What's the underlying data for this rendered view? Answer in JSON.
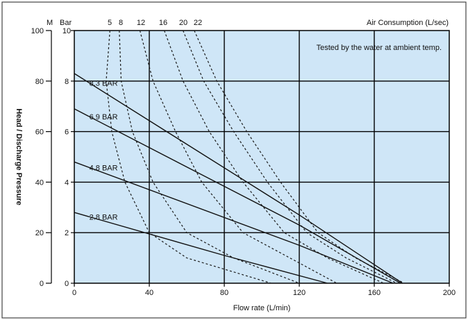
{
  "chart_data": {
    "type": "line",
    "xlabel": "Flow rate (L/min)",
    "ylabel": "Head / Discharge Pressure",
    "y_unit_left": "M",
    "y_unit_right": "Bar",
    "top_label": "Air Consumption (L/sec)",
    "note": "Tested by the water at ambient temp.",
    "xlim": [
      0,
      200
    ],
    "ylim_m": [
      0,
      100
    ],
    "ylim_bar": [
      0,
      10
    ],
    "x_ticks": [
      "0",
      "40",
      "80",
      "120",
      "160",
      "200"
    ],
    "y_ticks_m": [
      "0",
      "20",
      "40",
      "60",
      "80",
      "100"
    ],
    "y_ticks_bar": [
      "0",
      "2",
      "4",
      "6",
      "8",
      "10"
    ],
    "grid": true,
    "background_color": "#cfe6f7",
    "pressure_series": [
      {
        "name": "8.3 BAR",
        "points": [
          [
            0,
            8.3
          ],
          [
            120,
            2.7
          ],
          [
            175,
            0
          ]
        ]
      },
      {
        "name": "6.9 BAR",
        "points": [
          [
            0,
            6.9
          ],
          [
            120,
            2.3
          ],
          [
            174,
            0
          ]
        ]
      },
      {
        "name": "4.8 BAR",
        "points": [
          [
            0,
            4.8
          ],
          [
            120,
            1.5
          ],
          [
            170,
            0
          ]
        ]
      },
      {
        "name": "2.8 BAR",
        "points": [
          [
            0,
            2.8
          ],
          [
            80,
            1.1
          ],
          [
            135,
            0
          ]
        ]
      }
    ],
    "air_consumption_series": [
      {
        "name": "5",
        "points": [
          [
            19,
            10
          ],
          [
            17,
            8
          ],
          [
            20,
            6
          ],
          [
            27,
            4
          ],
          [
            40,
            2
          ],
          [
            60,
            1
          ],
          [
            105,
            0
          ]
        ]
      },
      {
        "name": "8",
        "points": [
          [
            24,
            10
          ],
          [
            25,
            8
          ],
          [
            31,
            6
          ],
          [
            42,
            4
          ],
          [
            60,
            2
          ],
          [
            85,
            1
          ],
          [
            120,
            0
          ]
        ]
      },
      {
        "name": "12",
        "points": [
          [
            35,
            10
          ],
          [
            42,
            8
          ],
          [
            54,
            6
          ],
          [
            68,
            4
          ],
          [
            90,
            2
          ],
          [
            115,
            1
          ],
          [
            140,
            0
          ]
        ]
      },
      {
        "name": "16",
        "points": [
          [
            48,
            10
          ],
          [
            58,
            8
          ],
          [
            72,
            6
          ],
          [
            90,
            4
          ],
          [
            112,
            2
          ],
          [
            135,
            1
          ],
          [
            165,
            0
          ]
        ]
      },
      {
        "name": "20",
        "points": [
          [
            58,
            10
          ],
          [
            69,
            8
          ],
          [
            85,
            6
          ],
          [
            103,
            4
          ],
          [
            124,
            2
          ],
          [
            145,
            1
          ],
          [
            172,
            0
          ]
        ]
      },
      {
        "name": "22",
        "points": [
          [
            64,
            10
          ],
          [
            76,
            8
          ],
          [
            92,
            6
          ],
          [
            110,
            4
          ],
          [
            130,
            2
          ],
          [
            150,
            1
          ],
          [
            176,
            0
          ]
        ]
      }
    ]
  }
}
